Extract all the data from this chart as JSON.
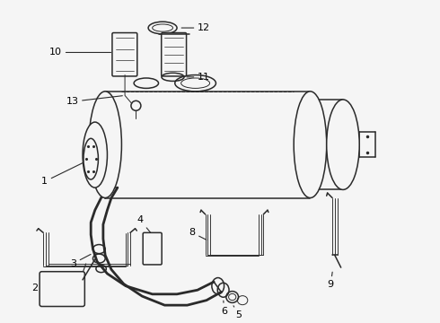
{
  "bg_color": "#f5f5f5",
  "line_color": "#2a2a2a",
  "label_color": "#000000",
  "figsize": [
    4.9,
    3.6
  ],
  "dpi": 100,
  "annotation_fontsize": 8.0,
  "lw_main": 1.1,
  "lw_thick": 2.0,
  "lw_thin": 0.7,
  "lw_triple": 0.65
}
